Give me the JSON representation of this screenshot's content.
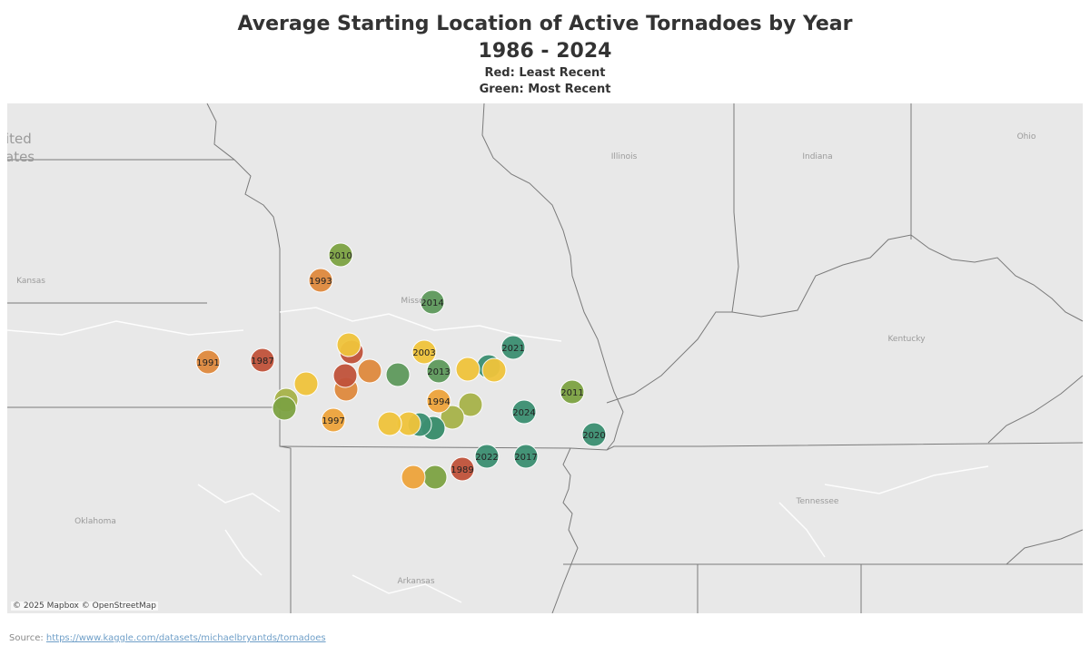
{
  "title": {
    "line1": "Average Starting Location of Active Tornadoes by Year",
    "line2": "1986 - 2024",
    "line3": "Red: Least Recent",
    "line4": "Green: Most Recent"
  },
  "map": {
    "labels": {
      "united_states_1": "ited",
      "united_states_2": "ates",
      "illinois": "Illinois",
      "indiana": "Indiana",
      "ohio": "Ohio",
      "kansas": "Kansas",
      "missouri": "Misso",
      "kentucky": "Kentucky",
      "tennessee": "Tennessee",
      "oklahoma": "Oklahoma",
      "arkansas": "Arkansas"
    },
    "attribution": "© 2025 Mapbox © OpenStreetMap"
  },
  "colors": {
    "map_bg": "#e6e6e6",
    "border": "#7a7a7a",
    "red": "#c1533b",
    "orange": "#df8a3e",
    "amber": "#eea43c",
    "yellow": "#f0c43c",
    "olive": "#a7b349",
    "green_light": "#7da343",
    "green": "#5e9a5c",
    "teal": "#3c8f72"
  },
  "points": [
    {
      "label": "2010",
      "tone": "green_light"
    },
    {
      "label": "1993",
      "tone": "orange"
    },
    {
      "label": "2014",
      "tone": "green"
    },
    {
      "label": "1991",
      "tone": "orange"
    },
    {
      "label": "1987",
      "tone": "red"
    },
    {
      "label": "2003",
      "tone": "yellow"
    },
    {
      "label": "2021",
      "tone": "teal"
    },
    {
      "label": "2013",
      "tone": "green"
    },
    {
      "label": "2011",
      "tone": "green_light"
    },
    {
      "label": "1994",
      "tone": "amber"
    },
    {
      "label": "2024",
      "tone": "teal"
    },
    {
      "label": "1997",
      "tone": "amber"
    },
    {
      "label": "2020",
      "tone": "teal"
    },
    {
      "label": "2022",
      "tone": "teal"
    },
    {
      "label": "2017",
      "tone": "teal"
    },
    {
      "label": "1989",
      "tone": "red"
    },
    {
      "label": "",
      "tone": "yellow"
    },
    {
      "label": "",
      "tone": "red"
    },
    {
      "label": "",
      "tone": "red"
    },
    {
      "label": "",
      "tone": "orange"
    },
    {
      "label": "",
      "tone": "orange"
    },
    {
      "label": "",
      "tone": "yellow"
    },
    {
      "label": "",
      "tone": "green"
    },
    {
      "label": "",
      "tone": "green_light"
    },
    {
      "label": "",
      "tone": "olive"
    },
    {
      "label": "",
      "tone": "yellow"
    },
    {
      "label": "",
      "tone": "yellow"
    },
    {
      "label": "",
      "tone": "teal"
    },
    {
      "label": "",
      "tone": "teal"
    },
    {
      "label": "",
      "tone": "olive"
    },
    {
      "label": "",
      "tone": "olive"
    },
    {
      "label": "",
      "tone": "yellow"
    },
    {
      "label": "",
      "tone": "yellow"
    },
    {
      "label": "",
      "tone": "teal"
    },
    {
      "label": "",
      "tone": "green_light"
    },
    {
      "label": "",
      "tone": "amber"
    },
    {
      "label": "",
      "tone": "green_light"
    }
  ],
  "source": {
    "prefix": "Source: ",
    "link": "https://www.kaggle.com/datasets/michaelbryantds/tornadoes"
  }
}
